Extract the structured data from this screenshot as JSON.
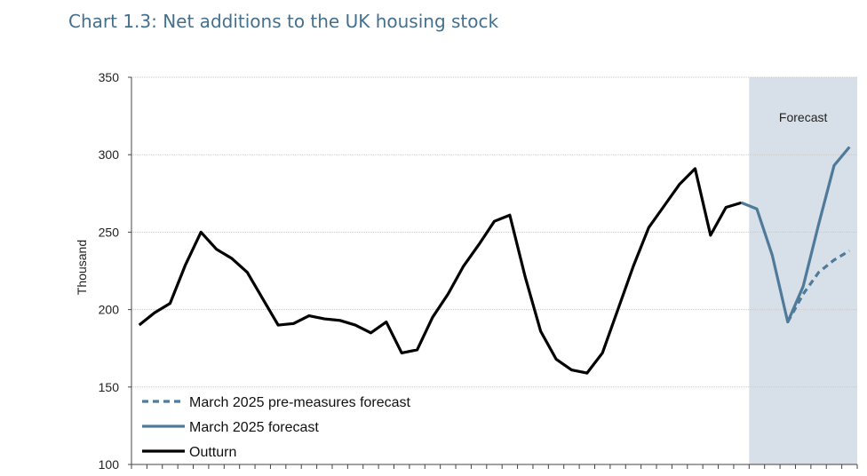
{
  "title": "Chart 1.3: Net additions to the UK housing stock",
  "chart_data": {
    "type": "line",
    "ylabel": "Thousand",
    "ylim": [
      100,
      350
    ],
    "yticks": [
      "100",
      "150",
      "200",
      "250",
      "300",
      "350"
    ],
    "grid": true,
    "legend_position": "bottom-left",
    "forecast_label": "Forecast",
    "forecast_start_index": 40,
    "colors": {
      "outturn": "#000000",
      "forecast": "#4f7a99",
      "shade": "#d7e0e8",
      "title": "#44708f"
    },
    "series": [
      {
        "name": "Outturn",
        "style": "solid",
        "start_index": 0,
        "values": [
          190,
          198,
          204,
          229,
          250,
          239,
          233,
          224,
          207,
          190,
          191,
          196,
          194,
          193,
          190,
          185,
          192,
          172,
          174,
          195,
          210,
          228,
          242,
          257,
          261,
          221,
          186,
          168,
          161,
          159,
          172,
          200,
          228,
          253,
          267,
          281,
          291,
          248,
          266,
          269
        ]
      },
      {
        "name": "March 2025 forecast",
        "style": "solid",
        "start_index": 39,
        "values": [
          269,
          265,
          235,
          192,
          215,
          255,
          293,
          305
        ]
      },
      {
        "name": "March 2025 pre-measures forecast",
        "style": "dashed",
        "start_index": 42,
        "values": [
          192,
          210,
          224,
          232,
          238
        ]
      }
    ],
    "legend": [
      "March 2025 pre-measures forecast",
      "March 2025 forecast",
      "Outturn"
    ]
  }
}
